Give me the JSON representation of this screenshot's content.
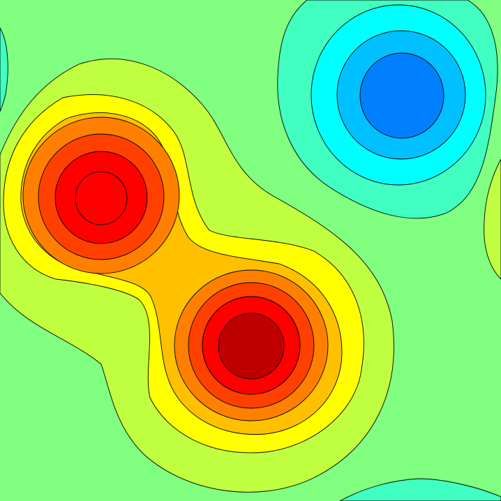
{
  "chart_data": {
    "type": "contour",
    "title": "",
    "xlabel": "",
    "ylabel": "",
    "axes_visible": false,
    "grid": false,
    "legend": "none",
    "colormap": "jet",
    "background_color": "#80ff80",
    "levels": [
      {
        "name": "level-neg-4",
        "color": "#0080ff"
      },
      {
        "name": "level-neg-3",
        "color": "#00c0ff"
      },
      {
        "name": "level-neg-2",
        "color": "#00ffff"
      },
      {
        "name": "level-neg-1",
        "color": "#40ffc0"
      },
      {
        "name": "level-0",
        "color": "#80ff80"
      },
      {
        "name": "level-1",
        "color": "#c0ff40"
      },
      {
        "name": "level-2",
        "color": "#ffff00"
      },
      {
        "name": "level-3",
        "color": "#ffc000"
      },
      {
        "name": "level-4",
        "color": "#ff8000"
      },
      {
        "name": "level-5",
        "color": "#ff4000"
      },
      {
        "name": "level-6",
        "color": "#ff0000"
      },
      {
        "name": "level-7",
        "color": "#c00000"
      }
    ],
    "features": [
      {
        "name": "peak-upper-left",
        "kind": "maximum",
        "peak_level": 6
      },
      {
        "name": "peak-lower-center",
        "kind": "maximum",
        "peak_level": 7
      },
      {
        "name": "trough-upper-right",
        "kind": "minimum",
        "peak_level": -4
      },
      {
        "name": "trough-bottom-edge",
        "kind": "minimum",
        "peak_level": -1
      },
      {
        "name": "trough-left-edge",
        "kind": "minimum",
        "peak_level": -1
      },
      {
        "name": "rise-right-edge",
        "kind": "maximum",
        "peak_level": 1
      }
    ]
  }
}
